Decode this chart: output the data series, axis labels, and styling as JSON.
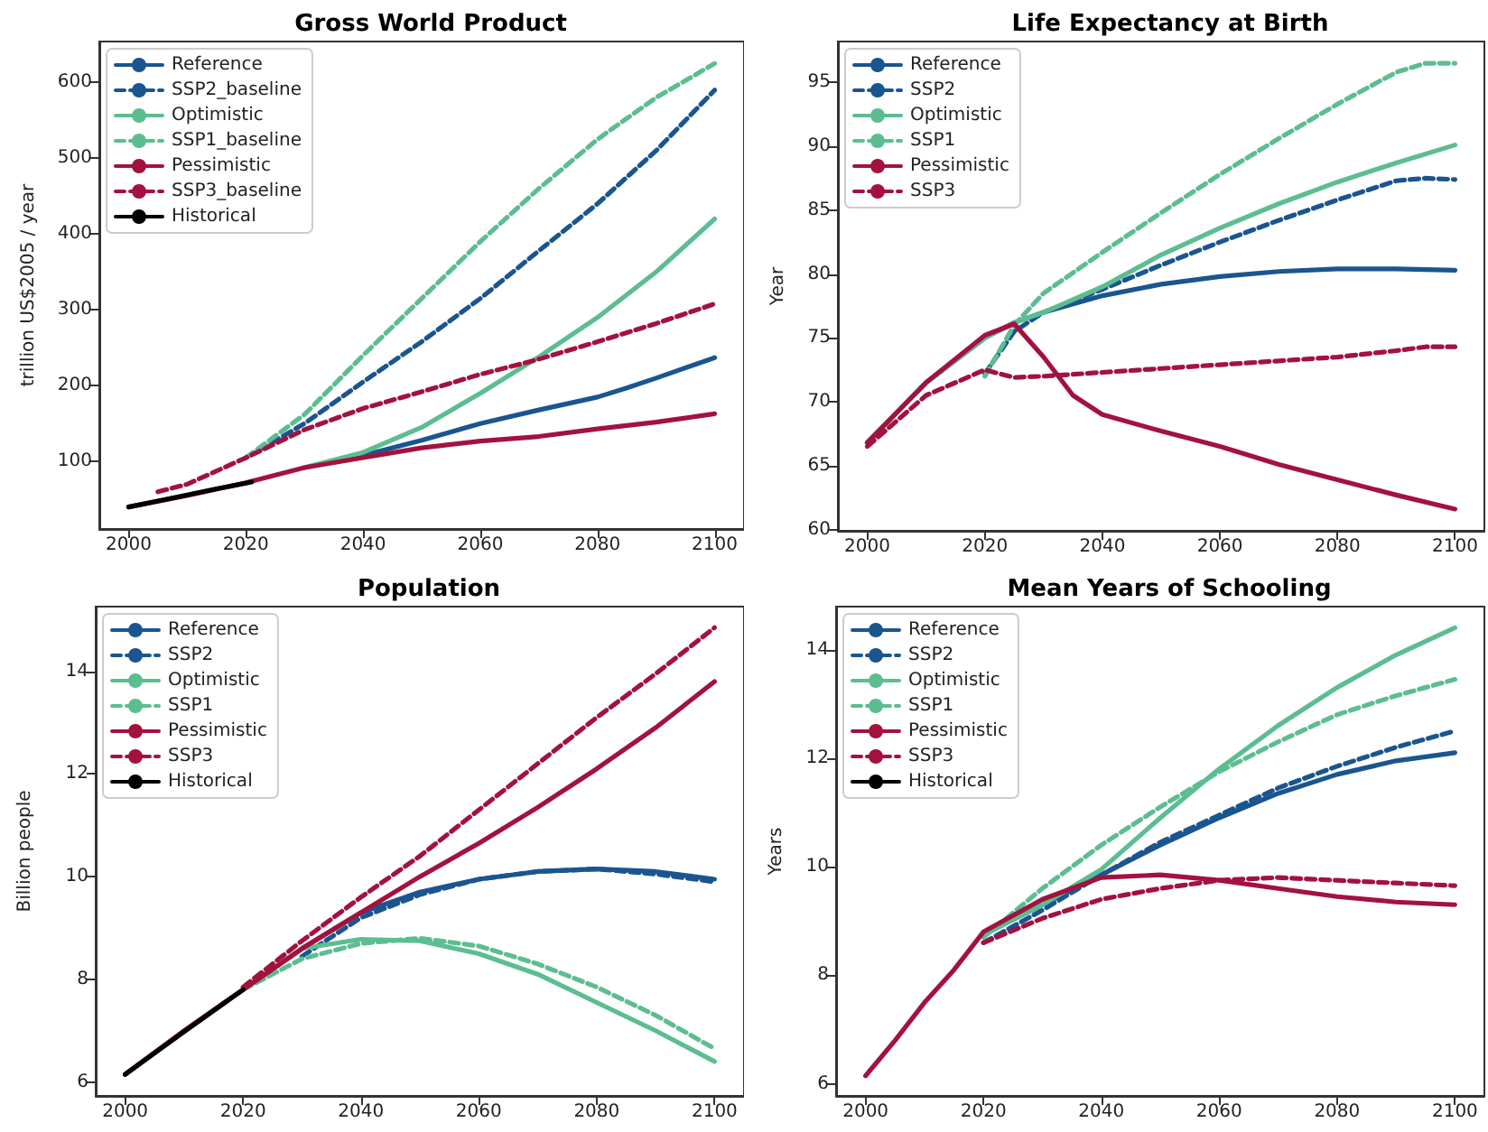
{
  "chart_data": [
    {
      "type": "line",
      "title": "Gross World Product",
      "ylabel": "trillion US$2005 / year",
      "xlim": [
        1995,
        2105
      ],
      "ylim": [
        11,
        654
      ],
      "xticks": [
        2000,
        2020,
        2040,
        2060,
        2080,
        2100
      ],
      "yticks": [
        100,
        200,
        300,
        400,
        500,
        600
      ],
      "legend": "top left",
      "series": [
        {
          "name": "Reference",
          "color": "#1a5590",
          "line_style": "solid",
          "x": [
            2030,
            2040,
            2050,
            2060,
            2070,
            2080,
            2085,
            2090,
            2100
          ],
          "values": [
            92,
            108,
            128,
            150,
            168,
            185,
            197,
            210,
            237
          ]
        },
        {
          "name": "SSP2_baseline",
          "color": "#1a5590",
          "line_style": "dashed",
          "x": [
            2020,
            2030,
            2040,
            2050,
            2060,
            2070,
            2080,
            2090,
            2100
          ],
          "values": [
            105,
            150,
            205,
            258,
            315,
            378,
            440,
            510,
            590
          ]
        },
        {
          "name": "Optimistic",
          "color": "#5cbd91",
          "line_style": "solid",
          "x": [
            2030,
            2040,
            2050,
            2060,
            2070,
            2080,
            2090,
            2100
          ],
          "values": [
            92,
            112,
            145,
            190,
            238,
            290,
            350,
            420
          ]
        },
        {
          "name": "SSP1_baseline",
          "color": "#5cbd91",
          "line_style": "dashed",
          "x": [
            2020,
            2030,
            2040,
            2050,
            2060,
            2070,
            2080,
            2090,
            2100
          ],
          "values": [
            105,
            162,
            240,
            315,
            390,
            460,
            525,
            580,
            625
          ]
        },
        {
          "name": "Pessimistic",
          "color": "#a3123f",
          "line_style": "solid",
          "x": [
            2000,
            2010,
            2020,
            2030,
            2040,
            2050,
            2060,
            2070,
            2080,
            2090,
            2100
          ],
          "values": [
            40,
            55,
            72,
            92,
            105,
            118,
            127,
            133,
            143,
            152,
            163
          ]
        },
        {
          "name": "SSP3_baseline",
          "color": "#a3123f",
          "line_style": "dashed",
          "x": [
            2005,
            2010,
            2020,
            2030,
            2040,
            2050,
            2060,
            2070,
            2080,
            2090,
            2100
          ],
          "values": [
            60,
            70,
            105,
            142,
            170,
            192,
            215,
            235,
            258,
            282,
            308
          ]
        },
        {
          "name": "Historical",
          "color": "#000000",
          "line_style": "solid",
          "x": [
            2000,
            2005,
            2010,
            2015,
            2021
          ],
          "values": [
            40,
            48,
            56,
            64,
            73
          ]
        }
      ]
    },
    {
      "type": "line",
      "title": "Life Expectancy at Birth",
      "ylabel": "Year",
      "xlim": [
        1995,
        2105
      ],
      "ylim": [
        59.9,
        98.2
      ],
      "xticks": [
        2000,
        2020,
        2040,
        2060,
        2080,
        2100
      ],
      "yticks": [
        60,
        65,
        70,
        75,
        80,
        85,
        90,
        95
      ],
      "legend": "top left",
      "series": [
        {
          "name": "Reference",
          "color": "#1a5590",
          "line_style": "solid",
          "x": [
            2000,
            2010,
            2020,
            2025,
            2030,
            2040,
            2050,
            2060,
            2070,
            2080,
            2090,
            2100
          ],
          "values": [
            66.8,
            71.5,
            75,
            76.2,
            77,
            78.3,
            79.2,
            79.8,
            80.2,
            80.4,
            80.4,
            80.3
          ]
        },
        {
          "name": "SSP2",
          "color": "#1a5590",
          "line_style": "dashed",
          "x": [
            2020,
            2025,
            2030,
            2040,
            2050,
            2060,
            2070,
            2080,
            2090,
            2095,
            2100
          ],
          "values": [
            72.2,
            75.5,
            77,
            78.8,
            80.7,
            82.5,
            84.2,
            85.8,
            87.3,
            87.5,
            87.4
          ]
        },
        {
          "name": "Optimistic",
          "color": "#5cbd91",
          "line_style": "solid",
          "x": [
            2000,
            2010,
            2020,
            2025,
            2030,
            2040,
            2050,
            2060,
            2070,
            2080,
            2090,
            2100
          ],
          "values": [
            66.8,
            71.5,
            75,
            76.2,
            77,
            79,
            81.5,
            83.6,
            85.5,
            87.2,
            88.7,
            90.1
          ]
        },
        {
          "name": "SSP1",
          "color": "#5cbd91",
          "line_style": "dashed",
          "x": [
            2020,
            2025,
            2030,
            2040,
            2050,
            2060,
            2070,
            2080,
            2090,
            2095,
            2100
          ],
          "values": [
            72,
            76,
            78.5,
            81.7,
            84.8,
            87.8,
            90.6,
            93.3,
            95.8,
            96.5,
            96.5
          ]
        },
        {
          "name": "Pessimistic",
          "color": "#a3123f",
          "line_style": "solid",
          "x": [
            2000,
            2010,
            2020,
            2025,
            2030,
            2035,
            2040,
            2050,
            2060,
            2070,
            2080,
            2090,
            2100
          ],
          "values": [
            66.8,
            71.5,
            75.2,
            76.1,
            73.5,
            70.5,
            69,
            67.7,
            66.5,
            65.1,
            63.9,
            62.7,
            61.6
          ]
        },
        {
          "name": "SSP3",
          "color": "#a3123f",
          "line_style": "dashed",
          "x": [
            2000,
            2010,
            2020,
            2025,
            2030,
            2040,
            2050,
            2060,
            2070,
            2080,
            2090,
            2095,
            2100
          ],
          "values": [
            66.5,
            70.5,
            72.5,
            71.9,
            72,
            72.3,
            72.6,
            72.9,
            73.2,
            73.5,
            74,
            74.3,
            74.3
          ]
        }
      ]
    },
    {
      "type": "line",
      "title": "Population",
      "ylabel": "Billion people",
      "xlim": [
        1995,
        2105
      ],
      "ylim": [
        5.73,
        15.26
      ],
      "xticks": [
        2000,
        2020,
        2040,
        2060,
        2080,
        2100
      ],
      "yticks": [
        6,
        8,
        10,
        12,
        14
      ],
      "legend": "top left",
      "series": [
        {
          "name": "Reference",
          "color": "#1a5590",
          "line_style": "solid",
          "x": [
            2020,
            2030,
            2040,
            2050,
            2060,
            2070,
            2080,
            2090,
            2100
          ],
          "values": [
            7.8,
            8.6,
            9.3,
            9.7,
            9.95,
            10.1,
            10.15,
            10.1,
            9.95
          ]
        },
        {
          "name": "SSP2",
          "color": "#1a5590",
          "line_style": "dashed",
          "x": [
            2030,
            2040,
            2050,
            2060,
            2070,
            2080,
            2090,
            2100
          ],
          "values": [
            8.45,
            9.2,
            9.65,
            9.95,
            10.1,
            10.15,
            10.05,
            9.9
          ]
        },
        {
          "name": "Optimistic",
          "color": "#5cbd91",
          "line_style": "solid",
          "x": [
            2000,
            2010,
            2020,
            2030,
            2040,
            2050,
            2060,
            2070,
            2080,
            2090,
            2100
          ],
          "values": [
            6.15,
            7.0,
            7.8,
            8.6,
            8.78,
            8.75,
            8.5,
            8.1,
            7.55,
            7.0,
            6.4
          ]
        },
        {
          "name": "SSP1",
          "color": "#5cbd91",
          "line_style": "dashed",
          "x": [
            2020,
            2030,
            2040,
            2050,
            2060,
            2070,
            2080,
            2090,
            2100
          ],
          "values": [
            7.8,
            8.4,
            8.7,
            8.8,
            8.65,
            8.3,
            7.85,
            7.3,
            6.65
          ]
        },
        {
          "name": "Pessimistic",
          "color": "#a3123f",
          "line_style": "solid",
          "x": [
            2000,
            2010,
            2020,
            2030,
            2040,
            2050,
            2060,
            2070,
            2080,
            2090,
            2100
          ],
          "values": [
            6.15,
            7.0,
            7.8,
            8.6,
            9.3,
            10.0,
            10.65,
            11.35,
            12.1,
            12.9,
            13.8
          ]
        },
        {
          "name": "SSP3",
          "color": "#a3123f",
          "line_style": "dashed",
          "x": [
            2020,
            2030,
            2040,
            2050,
            2060,
            2070,
            2080,
            2090,
            2100
          ],
          "values": [
            7.85,
            8.75,
            9.6,
            10.4,
            11.3,
            12.2,
            13.1,
            13.95,
            14.85
          ]
        },
        {
          "name": "Historical",
          "color": "#000000",
          "line_style": "solid",
          "x": [
            2000,
            2010,
            2020
          ],
          "values": [
            6.15,
            6.98,
            7.8
          ]
        }
      ]
    },
    {
      "type": "line",
      "title": "Mean Years of Schooling",
      "ylabel": "Years",
      "xlim": [
        1995,
        2105
      ],
      "ylim": [
        5.78,
        14.79
      ],
      "xticks": [
        2000,
        2020,
        2040,
        2060,
        2080,
        2100
      ],
      "yticks": [
        6,
        8,
        10,
        12,
        14
      ],
      "legend": "top left",
      "series": [
        {
          "name": "Reference",
          "color": "#1a5590",
          "line_style": "solid",
          "x": [
            2020,
            2030,
            2040,
            2050,
            2060,
            2070,
            2080,
            2090,
            2100
          ],
          "values": [
            8.75,
            9.3,
            9.85,
            10.4,
            10.9,
            11.35,
            11.7,
            11.95,
            12.1
          ]
        },
        {
          "name": "SSP2",
          "color": "#1a5590",
          "line_style": "dashed",
          "x": [
            2020,
            2030,
            2040,
            2050,
            2060,
            2070,
            2080,
            2090,
            2100
          ],
          "values": [
            8.6,
            9.2,
            9.85,
            10.45,
            10.95,
            11.45,
            11.85,
            12.2,
            12.5
          ]
        },
        {
          "name": "Optimistic",
          "color": "#5cbd91",
          "line_style": "solid",
          "x": [
            2020,
            2030,
            2040,
            2050,
            2060,
            2070,
            2080,
            2090,
            2100
          ],
          "values": [
            8.75,
            9.3,
            9.95,
            10.9,
            11.8,
            12.6,
            13.3,
            13.9,
            14.4
          ]
        },
        {
          "name": "SSP1",
          "color": "#5cbd91",
          "line_style": "dashed",
          "x": [
            2020,
            2030,
            2040,
            2050,
            2060,
            2070,
            2080,
            2090,
            2100
          ],
          "values": [
            8.7,
            9.6,
            10.4,
            11.1,
            11.75,
            12.3,
            12.8,
            13.15,
            13.45
          ]
        },
        {
          "name": "Pessimistic",
          "color": "#a3123f",
          "line_style": "solid",
          "x": [
            2000,
            2005,
            2010,
            2015,
            2020,
            2030,
            2040,
            2050,
            2060,
            2070,
            2080,
            2090,
            2100
          ],
          "values": [
            6.15,
            6.8,
            7.5,
            8.1,
            8.8,
            9.4,
            9.8,
            9.85,
            9.75,
            9.6,
            9.45,
            9.35,
            9.3
          ]
        },
        {
          "name": "SSP3",
          "color": "#a3123f",
          "line_style": "dashed",
          "x": [
            2020,
            2030,
            2040,
            2050,
            2060,
            2070,
            2080,
            2090,
            2100
          ],
          "values": [
            8.6,
            9.05,
            9.4,
            9.6,
            9.75,
            9.8,
            9.75,
            9.7,
            9.65
          ]
        },
        {
          "name": "Historical",
          "color": "#000000",
          "line_style": "solid"
        }
      ]
    }
  ]
}
